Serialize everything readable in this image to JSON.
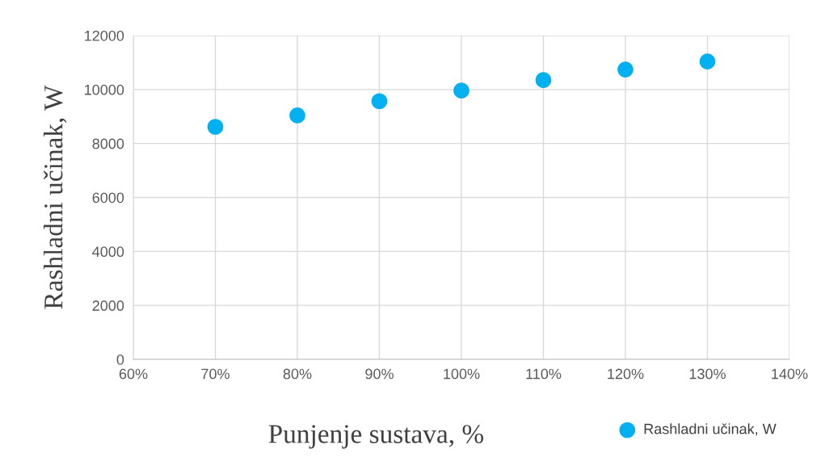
{
  "chart_data": {
    "type": "scatter",
    "xlabel": "Punjenje sustava, %",
    "ylabel": "Rashladni učinak, W",
    "x": [
      70,
      80,
      90,
      100,
      110,
      120,
      130
    ],
    "series": [
      {
        "name": "Rashladni učinak, W",
        "color": "#00b0f0",
        "values": [
          8620,
          9040,
          9570,
          9960,
          10350,
          10740,
          11040
        ]
      }
    ],
    "xlim": [
      60,
      140
    ],
    "xticks": [
      {
        "value": 60,
        "label": "60%"
      },
      {
        "value": 70,
        "label": "70%"
      },
      {
        "value": 80,
        "label": "80%"
      },
      {
        "value": 90,
        "label": "90%"
      },
      {
        "value": 100,
        "label": "100%"
      },
      {
        "value": 110,
        "label": "110%"
      },
      {
        "value": 120,
        "label": "120%"
      },
      {
        "value": 130,
        "label": "130%"
      },
      {
        "value": 140,
        "label": "140%"
      }
    ],
    "ylim": [
      0,
      12000
    ],
    "yticks": [
      0,
      2000,
      4000,
      6000,
      8000,
      10000,
      12000
    ],
    "grid": true,
    "legend": "bottom right",
    "marker": "circle"
  }
}
